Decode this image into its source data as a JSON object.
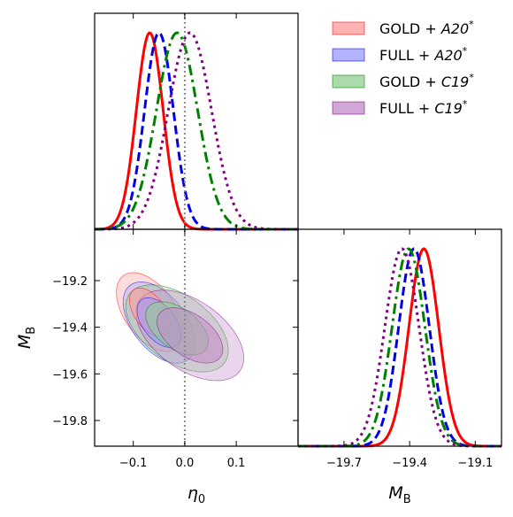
{
  "chart_data": {
    "type": "corner",
    "parameters": [
      "eta0",
      "MB"
    ],
    "axes": {
      "eta0": {
        "label_main": "η",
        "label_sub": "0",
        "range": [
          -0.175,
          0.22
        ],
        "ticks": [
          -0.1,
          0.0,
          0.1
        ],
        "tick_labels": [
          "−0.1",
          "0.0",
          "0.1"
        ]
      },
      "MB": {
        "label_main": "M",
        "label_sub": "B",
        "range": [
          -19.91,
          -18.98
        ],
        "ticks_y": [
          -19.2,
          -19.4,
          -19.6,
          -19.8
        ],
        "tick_labels_y": [
          "−19.2",
          "−19.4",
          "−19.6",
          "−19.8"
        ],
        "ticks_x": [
          -19.7,
          -19.4,
          -19.1
        ],
        "tick_labels_x": [
          "−19.7",
          "−19.4",
          "−19.1"
        ]
      }
    },
    "reference_line": {
      "eta0": 0.0
    },
    "legend": {
      "placement": "top-right"
    },
    "series": [
      {
        "name_base": "GOLD + ",
        "name_model": "A20",
        "name_sup": "*",
        "color": "#ff0000",
        "fill": "#ff9a9a",
        "dash": "solid",
        "eta0_mean": -0.068,
        "eta0_sigma": 0.026,
        "MB_mean": -19.335,
        "MB_sigma": 0.068,
        "corr": -0.5
      },
      {
        "name_base": "FULL + ",
        "name_model": "A20",
        "name_sup": "*",
        "color": "#0000ee",
        "fill": "#9a9aff",
        "dash": "dashed",
        "eta0_mean": -0.05,
        "eta0_sigma": 0.028,
        "MB_mean": -19.38,
        "MB_sigma": 0.07,
        "corr": -0.5
      },
      {
        "name_base": "GOLD + ",
        "name_model": "C19",
        "name_sup": "*",
        "color": "#008000",
        "fill": "#8fcf8f",
        "dash": "dashdot",
        "eta0_mean": -0.015,
        "eta0_sigma": 0.04,
        "MB_mean": -19.405,
        "MB_sigma": 0.075,
        "corr": -0.5
      },
      {
        "name_base": "FULL + ",
        "name_model": "C19",
        "name_sup": "*",
        "color": "#800080",
        "fill": "#c28ac8",
        "dash": "dotted",
        "eta0_mean": 0.01,
        "eta0_sigma": 0.042,
        "MB_mean": -19.435,
        "MB_sigma": 0.078,
        "corr": -0.5
      }
    ]
  }
}
